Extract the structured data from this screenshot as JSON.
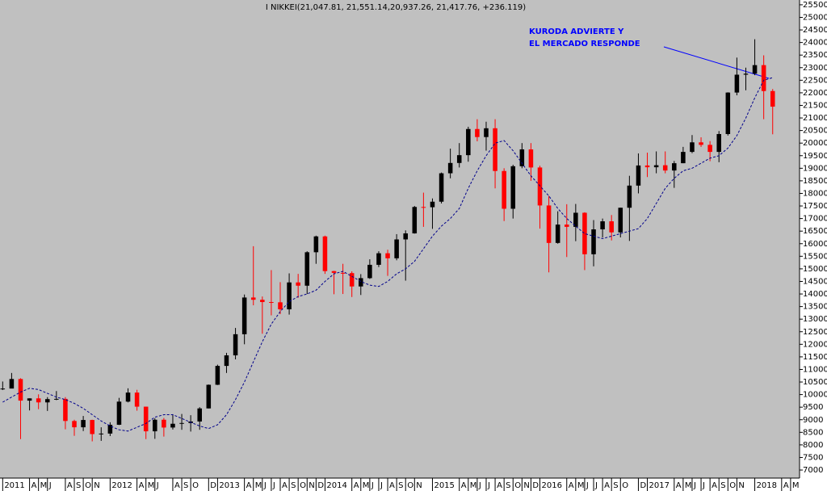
{
  "chart_data": {
    "type": "candlestick",
    "title": "I NIKKEI(21,047.81, 21,551.14,20,937.26, 21,417.76, +236.119)",
    "annotations": [
      "KURODA ADVIERTE Y",
      "EL MERCADO RESPONDE"
    ],
    "annotation_color": "#0000ff",
    "up_color": "#000000",
    "down_color": "#ff0000",
    "ma_color": "#00008b",
    "x": [
      0,
      1,
      2,
      3,
      4,
      5,
      6,
      7,
      8,
      9,
      10,
      11,
      12,
      13,
      14,
      15,
      16,
      17,
      18,
      19,
      20,
      21,
      22,
      23,
      24,
      25,
      26,
      27,
      28,
      29,
      30,
      31,
      32,
      33,
      34,
      35,
      36,
      37,
      38,
      39,
      40,
      41,
      42,
      43,
      44,
      45,
      46,
      47,
      48,
      49,
      50,
      51,
      52,
      53,
      54,
      55,
      56,
      57,
      58,
      59,
      60,
      61,
      62,
      63,
      64,
      65,
      66,
      67,
      68,
      69,
      70,
      71,
      72,
      73,
      74,
      75,
      76,
      77,
      78,
      79,
      80,
      81,
      82,
      83,
      84,
      85,
      86
    ],
    "open": [
      10230,
      10240,
      10620,
      9760,
      9850,
      9690,
      9820,
      9830,
      8950,
      8700,
      8990,
      8430,
      8450,
      8800,
      9720,
      10080,
      9520,
      8540,
      9000,
      8690,
      8840,
      8870,
      8930,
      9450,
      10390,
      11140,
      11560,
      12400,
      13860,
      13770,
      13680,
      13670,
      13390,
      14460,
      14330,
      15660,
      16290,
      14910,
      14840,
      14830,
      14300,
      14630,
      15160,
      15620,
      15420,
      16170,
      16410,
      17460,
      17450,
      17670,
      18800,
      19210,
      19520,
      20560,
      20240,
      20590,
      18890,
      17390,
      19080,
      19750,
      19030,
      17520,
      16030,
      16760,
      16670,
      17230,
      15580,
      16570,
      16890,
      16450,
      17430,
      18310,
      19110,
      19040,
      19120,
      18910,
      19200,
      19650,
      20030,
      19930,
      19650,
      20360,
      22010,
      22720,
      22760,
      23100,
      22070
    ],
    "high": [
      10520,
      10860,
      10650,
      9850,
      10010,
      9900,
      10140,
      9900,
      9000,
      9150,
      9000,
      8700,
      8900,
      9870,
      10250,
      10190,
      9520,
      9060,
      9070,
      9220,
      9230,
      9180,
      9500,
      10400,
      11190,
      11660,
      12650,
      13980,
      15900,
      13900,
      14950,
      14470,
      14820,
      14800,
      15700,
      16320,
      16320,
      14920,
      15200,
      14900,
      14790,
      15380,
      15700,
      15760,
      16380,
      16530,
      17500,
      18030,
      17800,
      18830,
      19780,
      20000,
      20650,
      20950,
      20850,
      20950,
      19000,
      19140,
      20000,
      20000,
      19100,
      17900,
      17290,
      17570,
      17580,
      17250,
      16940,
      17000,
      17140,
      17430,
      18700,
      19590,
      19620,
      19670,
      19670,
      19290,
      19850,
      20320,
      20230,
      20080,
      20480,
      22020,
      23400,
      23000,
      24130,
      23490,
      22150
    ],
    "low": [
      10180,
      10280,
      8230,
      9370,
      9420,
      9350,
      9780,
      8620,
      8360,
      8550,
      8140,
      8160,
      8350,
      8790,
      9690,
      9360,
      8230,
      8240,
      8330,
      8610,
      8600,
      8530,
      8600,
      9450,
      10380,
      10860,
      11400,
      12000,
      13550,
      12420,
      13150,
      13200,
      13180,
      13850,
      14000,
      15200,
      14800,
      13990,
      14000,
      13880,
      13960,
      14600,
      15070,
      14720,
      15340,
      14530,
      16400,
      16670,
      16590,
      17600,
      18600,
      19030,
      19260,
      20070,
      19700,
      18200,
      16900,
      17000,
      19000,
      18500,
      16600,
      14860,
      16000,
      15470,
      16100,
      14950,
      15100,
      16250,
      16130,
      16250,
      16110,
      18000,
      18650,
      18800,
      18800,
      18220,
      19200,
      19600,
      19850,
      19280,
      19240,
      20300,
      21900,
      22100,
      22700,
      20950,
      20350
    ],
    "close": [
      10240,
      10620,
      9760,
      9850,
      9690,
      9820,
      9830,
      8950,
      8700,
      8990,
      8430,
      8450,
      8800,
      9720,
      10080,
      9520,
      8540,
      9000,
      8690,
      8840,
      8870,
      8930,
      9450,
      10390,
      11140,
      11560,
      12400,
      13860,
      13770,
      13680,
      13670,
      13390,
      14460,
      14330,
      15660,
      16290,
      14910,
      14840,
      14830,
      14300,
      14630,
      15160,
      15620,
      15420,
      16170,
      16410,
      17460,
      17450,
      17670,
      18800,
      19210,
      19520,
      20560,
      20240,
      20590,
      18890,
      17390,
      19080,
      19750,
      19030,
      17520,
      16030,
      16760,
      16670,
      17230,
      15580,
      16570,
      16890,
      16450,
      17430,
      18310,
      19110,
      19040,
      19120,
      18910,
      19200,
      19650,
      20030,
      19930,
      19650,
      20360,
      22010,
      22720,
      22760,
      23100,
      22070,
      21450
    ],
    "ma": [
      9700,
      9900,
      10100,
      10250,
      10200,
      10050,
      9900,
      9800,
      9650,
      9450,
      9200,
      8950,
      8750,
      8600,
      8550,
      8700,
      8850,
      9100,
      9200,
      9200,
      9050,
      8900,
      8750,
      8650,
      8800,
      9200,
      9800,
      10500,
      11300,
      12100,
      12800,
      13300,
      13700,
      13900,
      14000,
      14150,
      14500,
      14800,
      14900,
      14700,
      14500,
      14350,
      14300,
      14500,
      14800,
      15000,
      15300,
      15800,
      16300,
      16700,
      17000,
      17400,
      18200,
      18900,
      19500,
      20000,
      20100,
      19700,
      19200,
      18700,
      18300,
      17900,
      17400,
      17000,
      16700,
      16400,
      16300,
      16200,
      16300,
      16400,
      16500,
      16600,
      17000,
      17600,
      18200,
      18600,
      18900,
      19000,
      19200,
      19400,
      19500,
      19800,
      20300,
      21000,
      21800,
      22500,
      22600
    ],
    "xlim": [
      -0.3,
      89
    ],
    "ylim": [
      6680,
      25690
    ],
    "yticks": [
      7000,
      7500,
      8000,
      8500,
      9000,
      9500,
      10000,
      10500,
      11000,
      11500,
      12000,
      12500,
      13000,
      13500,
      14000,
      14500,
      15000,
      15500,
      16000,
      16500,
      17000,
      17500,
      18000,
      18500,
      19000,
      19500,
      20000,
      20500,
      21000,
      21500,
      22000,
      22500,
      23000,
      23500,
      24000,
      24500,
      25000,
      25500
    ],
    "xticks": [
      {
        "value": 0,
        "label": "2011"
      },
      {
        "value": 3,
        "label": "A"
      },
      {
        "value": 4,
        "label": "M"
      },
      {
        "value": 5,
        "label": "J"
      },
      {
        "value": 7,
        "label": "A"
      },
      {
        "value": 8,
        "label": "S"
      },
      {
        "value": 9,
        "label": "O"
      },
      {
        "value": 10,
        "label": "N"
      },
      {
        "value": 12,
        "label": "2012"
      },
      {
        "value": 15,
        "label": "A"
      },
      {
        "value": 16,
        "label": "M"
      },
      {
        "value": 17,
        "label": "J"
      },
      {
        "value": 19,
        "label": "A"
      },
      {
        "value": 20,
        "label": "S"
      },
      {
        "value": 21,
        "label": "O"
      },
      {
        "value": 23,
        "label": "D"
      },
      {
        "value": 24,
        "label": "2013"
      },
      {
        "value": 27,
        "label": "A"
      },
      {
        "value": 28,
        "label": "M"
      },
      {
        "value": 29,
        "label": "J"
      },
      {
        "value": 30,
        "label": "J"
      },
      {
        "value": 31,
        "label": "A"
      },
      {
        "value": 32,
        "label": "S"
      },
      {
        "value": 33,
        "label": "O"
      },
      {
        "value": 34,
        "label": "N"
      },
      {
        "value": 35,
        "label": "D"
      },
      {
        "value": 36,
        "label": "2014"
      },
      {
        "value": 39,
        "label": "A"
      },
      {
        "value": 40,
        "label": "M"
      },
      {
        "value": 41,
        "label": "J"
      },
      {
        "value": 42,
        "label": "J"
      },
      {
        "value": 43,
        "label": "A"
      },
      {
        "value": 44,
        "label": "S"
      },
      {
        "value": 45,
        "label": "O"
      },
      {
        "value": 46,
        "label": "N"
      },
      {
        "value": 48,
        "label": "2015"
      },
      {
        "value": 51,
        "label": "A"
      },
      {
        "value": 52,
        "label": "M"
      },
      {
        "value": 53,
        "label": "J"
      },
      {
        "value": 54,
        "label": "J"
      },
      {
        "value": 55,
        "label": "A"
      },
      {
        "value": 56,
        "label": "S"
      },
      {
        "value": 57,
        "label": "O"
      },
      {
        "value": 58,
        "label": "N"
      },
      {
        "value": 59,
        "label": "D"
      },
      {
        "value": 60,
        "label": "2016"
      },
      {
        "value": 63,
        "label": "A"
      },
      {
        "value": 64,
        "label": "M"
      },
      {
        "value": 65,
        "label": "J"
      },
      {
        "value": 66,
        "label": "J"
      },
      {
        "value": 67,
        "label": "A"
      },
      {
        "value": 68,
        "label": "S"
      },
      {
        "value": 69,
        "label": "O"
      },
      {
        "value": 71,
        "label": "D"
      },
      {
        "value": 72,
        "label": "2017"
      },
      {
        "value": 75,
        "label": "A"
      },
      {
        "value": 76,
        "label": "M"
      },
      {
        "value": 77,
        "label": "J"
      },
      {
        "value": 78,
        "label": "J"
      },
      {
        "value": 79,
        "label": "A"
      },
      {
        "value": 80,
        "label": "S"
      },
      {
        "value": 81,
        "label": "O"
      },
      {
        "value": 82,
        "label": "N"
      },
      {
        "value": 84,
        "label": "2018"
      },
      {
        "value": 87,
        "label": "A"
      },
      {
        "value": 88,
        "label": "M"
      }
    ]
  }
}
